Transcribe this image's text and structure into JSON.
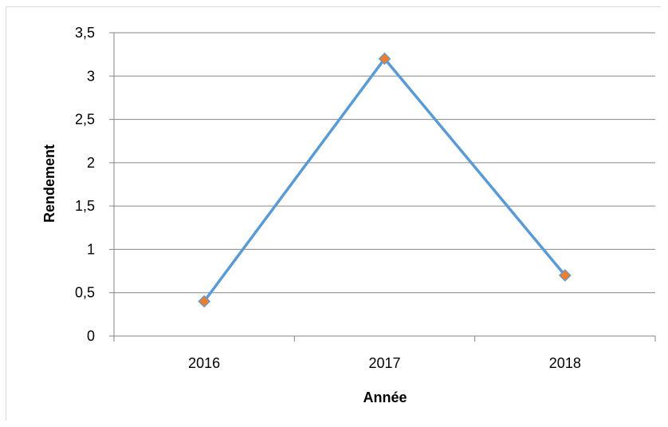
{
  "chart_data": {
    "type": "line",
    "xlabel": "Année",
    "ylabel": "Rendement",
    "categories": [
      "2016",
      "2017",
      "2018"
    ],
    "values": [
      0.4,
      3.2,
      0.7
    ],
    "ylim": [
      0,
      3.5
    ],
    "yticks": [
      "0",
      "0,5",
      "1",
      "1,5",
      "2",
      "2,5",
      "3",
      "3,5"
    ],
    "ytick_values": [
      0,
      0.5,
      1,
      1.5,
      2,
      2.5,
      3,
      3.5
    ],
    "grid": true,
    "legend": "none",
    "colors": {
      "line": "#5b9bd5",
      "marker": "#ed7d31",
      "grid": "#868686",
      "axis": "#868686"
    }
  }
}
